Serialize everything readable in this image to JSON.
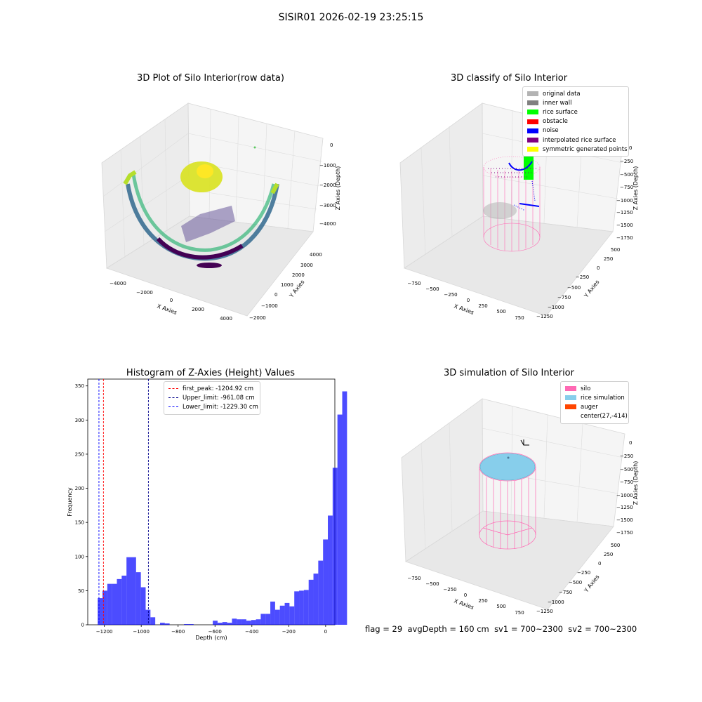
{
  "figure": {
    "suptitle": "SISIR01 2026-02-19 23:25:15"
  },
  "panel1": {
    "title": "3D Plot of Silo Interior(row data)",
    "xlabel": "X Axies",
    "ylabel": "Y Axies",
    "zlabel": "Z Axies (Depth)",
    "xticks": [
      "−4000",
      "−2000",
      "0",
      "2000",
      "4000"
    ],
    "yticks": [
      "−2000",
      "−1000",
      "0",
      "1000",
      "2000",
      "3000",
      "4000"
    ],
    "zticks": [
      "0",
      "−1000",
      "−2000",
      "−3000",
      "−4000"
    ]
  },
  "panel2": {
    "title": "3D classify of Silo Interior",
    "xlabel": "X Axies",
    "ylabel": "Y Axies",
    "zlabel": "Z Axies (Depth)",
    "xticks": [
      "−750",
      "−500",
      "−250",
      "0",
      "250",
      "500",
      "750"
    ],
    "yticks": [
      "−1250",
      "−1000",
      "−750",
      "−500",
      "−250",
      "0",
      "250",
      "500"
    ],
    "zticks": [
      "0",
      "−250",
      "−500",
      "−750",
      "−1000",
      "−1250",
      "−1500",
      "−1750"
    ],
    "legend": [
      {
        "label": "original data",
        "color": "#b3b3b3"
      },
      {
        "label": "inner wall",
        "color": "#808080"
      },
      {
        "label": "rice surface",
        "color": "#00ff00"
      },
      {
        "label": "obstacle",
        "color": "#ff0000"
      },
      {
        "label": "noise",
        "color": "#0000ff"
      },
      {
        "label": "interpolated rice surface",
        "color": "#800080"
      },
      {
        "label": "symmetric generated points",
        "color": "#ffff00"
      }
    ]
  },
  "panel3": {
    "title": "Histogram of Z-Axies (Height) Values",
    "xlabel": "Depth (cm)",
    "ylabel": "Frequency",
    "legend": [
      {
        "label": "first_peak: -1204.92 cm",
        "color": "#ff0000"
      },
      {
        "label": "Upper_limit: -961.08 cm",
        "color": "#00008b"
      },
      {
        "label": "Lower_limit: -1229.30 cm",
        "color": "#0000ff"
      }
    ]
  },
  "panel4": {
    "title": "3D simulation of Silo Interior",
    "xlabel": "X Axies",
    "ylabel": "Y Axies",
    "zlabel": "Z Axies (Depth)",
    "xticks": [
      "−750",
      "−500",
      "−250",
      "0",
      "250",
      "500",
      "750"
    ],
    "yticks": [
      "−1250",
      "−1000",
      "−750",
      "−500",
      "−250",
      "0",
      "250",
      "500"
    ],
    "zticks": [
      "0",
      "−250",
      "−500",
      "−750",
      "−1000",
      "−1250",
      "−1500",
      "−1750"
    ],
    "legend": [
      {
        "label": "silo",
        "color": "#ff69b4"
      },
      {
        "label": "rice simulation",
        "color": "#87ceeb"
      },
      {
        "label": "auger",
        "color": "#ff4500"
      },
      {
        "label": "center(27,-414)",
        "color": ""
      }
    ]
  },
  "status": {
    "flag": "flag = 29",
    "avg": "avgDepth = 160 cm",
    "sv1": "sv1 = 700~2300",
    "sv2": "sv2 = 700~2300"
  },
  "chart_data": [
    {
      "type": "scatter",
      "title": "3D Plot of Silo Interior(row data)",
      "xlabel": "X Axies",
      "ylabel": "Y Axies",
      "zlabel": "Z Axies (Depth)",
      "xlim": [
        -4500,
        4500
      ],
      "ylim": [
        -2000,
        4500
      ],
      "zlim": [
        -4500,
        0
      ]
    },
    {
      "type": "scatter",
      "title": "3D classify of Silo Interior",
      "xlim": [
        -800,
        800
      ],
      "ylim": [
        -1250,
        500
      ],
      "zlim": [
        -1750,
        0
      ],
      "series": [
        {
          "name": "original data"
        },
        {
          "name": "inner wall"
        },
        {
          "name": "rice surface"
        },
        {
          "name": "obstacle"
        },
        {
          "name": "noise"
        },
        {
          "name": "interpolated rice surface"
        },
        {
          "name": "symmetric generated points"
        }
      ]
    },
    {
      "type": "bar",
      "title": "Histogram of Z-Axies (Height) Values",
      "xlabel": "Depth (cm)",
      "ylabel": "Frequency",
      "xlim": [
        -1290,
        50
      ],
      "ylim": [
        0,
        360
      ],
      "xticks": [
        -1200,
        -1000,
        -800,
        -600,
        -400,
        -200,
        0
      ],
      "yticks": [
        0,
        50,
        100,
        150,
        200,
        250,
        300,
        350
      ],
      "bin_width": 26,
      "bin_start": -1236,
      "values": [
        39,
        50,
        60,
        60,
        67,
        72,
        99,
        99,
        77,
        55,
        22,
        11,
        0,
        3,
        2,
        0,
        0,
        0,
        1,
        1,
        0,
        0,
        0,
        0,
        6,
        3,
        4,
        3,
        9,
        8,
        8,
        6,
        7,
        8,
        16,
        16,
        34,
        22,
        28,
        32,
        27,
        49,
        50,
        51,
        66,
        75,
        94,
        125,
        160,
        230,
        308,
        342
      ],
      "vlines": [
        {
          "name": "first_peak: -1204.92 cm",
          "x": -1204.92,
          "color": "#ff0000"
        },
        {
          "name": "Upper_limit: -961.08 cm",
          "x": -961.08,
          "color": "#00008b"
        },
        {
          "name": "Lower_limit: -1229.30 cm",
          "x": -1229.3,
          "color": "#0000ff"
        }
      ]
    },
    {
      "type": "scatter",
      "title": "3D simulation of Silo Interior",
      "xlim": [
        -800,
        800
      ],
      "ylim": [
        -1250,
        500
      ],
      "zlim": [
        -1750,
        0
      ],
      "series": [
        {
          "name": "silo"
        },
        {
          "name": "rice simulation"
        },
        {
          "name": "auger"
        },
        {
          "name": "center(27,-414)"
        }
      ]
    }
  ]
}
